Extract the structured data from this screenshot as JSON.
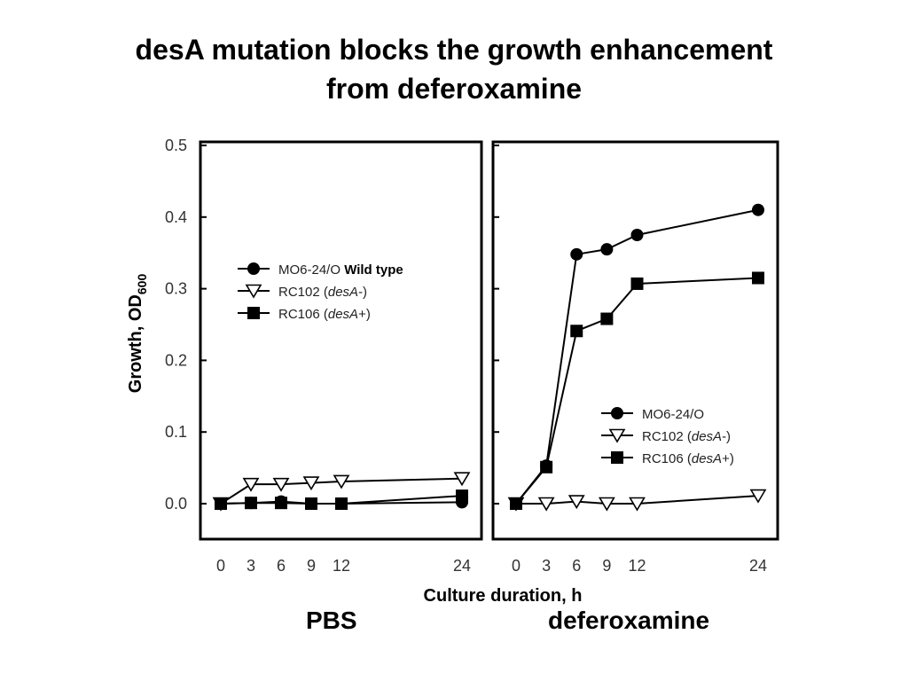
{
  "title": {
    "line1": "desA mutation blocks the growth enhancement",
    "line2": "from deferoxamine"
  },
  "condition_labels": {
    "left": "PBS",
    "right": "deferoxamine"
  },
  "chart_data": {
    "type": "line",
    "ylabel": "Growth, OD",
    "ylabel_subscript": "600",
    "xlabel": "Culture duration, h",
    "ylim": [
      0,
      0.5
    ],
    "yticks": [
      "0.0",
      "0.1",
      "0.2",
      "0.3",
      "0.4",
      "0.5"
    ],
    "ytick_values": [
      0,
      0.1,
      0.2,
      0.3,
      0.4,
      0.5
    ],
    "xticks": [
      "0",
      "3",
      "6",
      "9",
      "12",
      "24"
    ],
    "xtick_values": [
      0,
      3,
      6,
      9,
      12,
      24
    ],
    "grid": false,
    "panels": [
      {
        "condition": "PBS",
        "legend_position": "upper-left",
        "legend": [
          {
            "label": "MO6-24/O",
            "note": "Wild type",
            "marker": "circle"
          },
          {
            "label_prefix": "RC102 (",
            "label_italic": "desA",
            "label_suffix": "-)",
            "marker": "triangle-down-open"
          },
          {
            "label_prefix": "RC106 (",
            "label_italic": "desA",
            "label_suffix": "+)",
            "marker": "square"
          }
        ],
        "series": [
          {
            "name": "MO6-24/O",
            "marker": "circle",
            "x": [
              0,
              3,
              6,
              9,
              12,
              24
            ],
            "y": [
              0.0,
              0.001,
              0.003,
              0.0,
              0.0,
              0.002
            ]
          },
          {
            "name": "RC102 (desA-)",
            "marker": "triangle-down-open",
            "x": [
              0,
              3,
              6,
              9,
              12,
              24
            ],
            "y": [
              0.0,
              0.027,
              0.027,
              0.029,
              0.031,
              0.035
            ]
          },
          {
            "name": "RC106 (desA+)",
            "marker": "square",
            "x": [
              0,
              3,
              6,
              9,
              12,
              24
            ],
            "y": [
              0.0,
              0.001,
              0.001,
              0.0,
              0.0,
              0.011
            ]
          }
        ]
      },
      {
        "condition": "deferoxamine",
        "legend_position": "lower-right",
        "legend": [
          {
            "label": "MO6-24/O",
            "note": "",
            "marker": "circle"
          },
          {
            "label_prefix": "RC102 (",
            "label_italic": "desA",
            "label_suffix": "-)",
            "marker": "triangle-down-open"
          },
          {
            "label_prefix": "RC106 (",
            "label_italic": "desA",
            "label_suffix": "+)",
            "marker": "square"
          }
        ],
        "series": [
          {
            "name": "MO6-24/O",
            "marker": "circle",
            "x": [
              0,
              3,
              6,
              9,
              12,
              24
            ],
            "y": [
              0.0,
              0.053,
              0.348,
              0.355,
              0.375,
              0.41
            ]
          },
          {
            "name": "RC102 (desA-)",
            "marker": "triangle-down-open",
            "x": [
              0,
              3,
              6,
              9,
              12,
              24
            ],
            "y": [
              0.0,
              0.0,
              0.003,
              0.0,
              0.0,
              0.011
            ]
          },
          {
            "name": "RC106 (desA+)",
            "marker": "square",
            "x": [
              0,
              3,
              6,
              9,
              12,
              24
            ],
            "y": [
              0.0,
              0.051,
              0.241,
              0.258,
              0.307,
              0.315
            ]
          }
        ]
      }
    ]
  }
}
